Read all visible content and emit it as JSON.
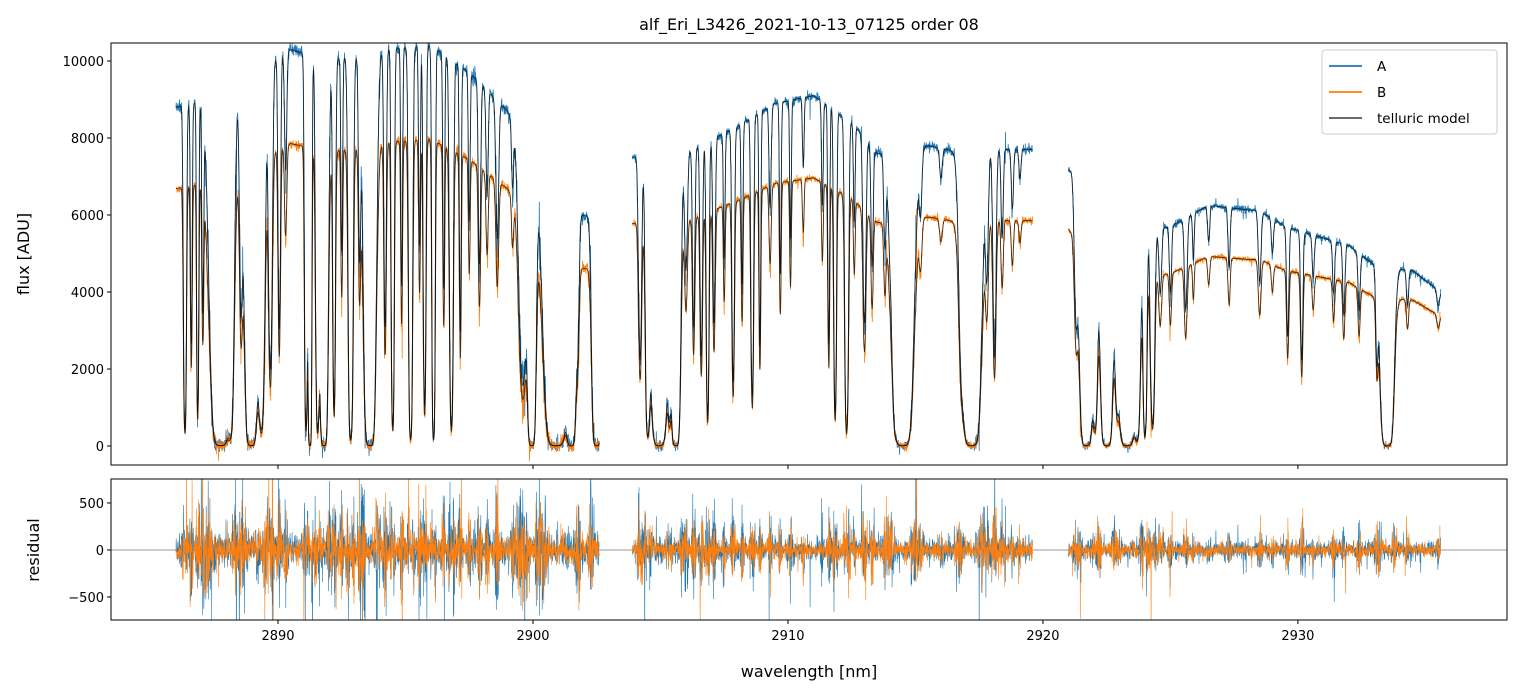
{
  "chart_data": {
    "type": "line",
    "title": "alf_Eri_L3426_2021-10-13_07125  order 08",
    "xlabel": "wavelength [nm]",
    "ylabel_top": "flux [ADU]",
    "ylabel_bottom": "residual",
    "xlim": [
      2883.45,
      2938.2
    ],
    "ylim_top": [
      -494,
      10468
    ],
    "ylim_bottom": [
      -745,
      755
    ],
    "xticks": [
      2890,
      2900,
      2910,
      2920,
      2930
    ],
    "xtick_labels": [
      "2890",
      "2900",
      "2910",
      "2920",
      "2930"
    ],
    "yticks_top": [
      0,
      2000,
      4000,
      6000,
      8000,
      10000
    ],
    "ytick_labels_top": [
      "0",
      "2000",
      "4000",
      "6000",
      "8000",
      "10000"
    ],
    "yticks_bottom": [
      -500,
      0,
      500
    ],
    "ytick_labels_bottom": [
      "−500",
      "0",
      "500"
    ],
    "legend": {
      "placement": "top-right",
      "entries": [
        {
          "label": "A",
          "color": "#1f77b4"
        },
        {
          "label": "B",
          "color": "#ff7f0e"
        },
        {
          "label": "telluric model",
          "color": "#555555"
        }
      ]
    },
    "segments": [
      {
        "range": [
          2886.0,
          2902.6
        ],
        "continuum_A": [
          [
            2886,
            8800
          ],
          [
            2887.3,
            9000
          ],
          [
            2888.5,
            9500
          ],
          [
            2890.5,
            10300
          ],
          [
            2892,
            10000
          ],
          [
            2894,
            10300
          ],
          [
            2896,
            10400
          ],
          [
            2897.5,
            9700
          ],
          [
            2899,
            8700
          ],
          [
            2900.3,
            7000
          ],
          [
            2901.2,
            6000
          ],
          [
            2902.6,
            6000
          ]
        ],
        "B_to_A_ratio": [
          [
            2886,
            0.76
          ],
          [
            2902.6,
            0.77
          ]
        ],
        "residual_amplitude": 220,
        "lines": [
          [
            2886.35,
            0.95,
            0.04
          ],
          [
            2886.6,
            0.7,
            0.03
          ],
          [
            2886.85,
            0.9,
            0.03
          ],
          [
            2887.05,
            0.6,
            0.03
          ],
          [
            2887.75,
            1,
            0.22
          ],
          [
            2888.15,
            0.9,
            0.08
          ],
          [
            2888.55,
            0.6,
            0.05
          ],
          [
            2888.95,
            1,
            0.14
          ],
          [
            2889.35,
            0.95,
            0.09
          ],
          [
            2889.7,
            0.8,
            0.06
          ],
          [
            2890.05,
            0.7,
            0.04
          ],
          [
            2890.3,
            0.3,
            0.04
          ],
          [
            2891.1,
            0.95,
            0.04
          ],
          [
            2891.25,
            1,
            0.04
          ],
          [
            2891.55,
            0.95,
            0.05
          ],
          [
            2891.8,
            1,
            0.09
          ],
          [
            2892.2,
            0.9,
            0.04
          ],
          [
            2892.5,
            0.5,
            0.03
          ],
          [
            2892.85,
            0.98,
            0.06
          ],
          [
            2893.2,
            0.5,
            0.04
          ],
          [
            2893.6,
            1,
            0.13
          ],
          [
            2894.2,
            0.7,
            0.04
          ],
          [
            2894.5,
            0.95,
            0.04
          ],
          [
            2894.85,
            0.6,
            0.03
          ],
          [
            2895.2,
            0.98,
            0.05
          ],
          [
            2895.55,
            0.5,
            0.03
          ],
          [
            2895.75,
            0.9,
            0.04
          ],
          [
            2896.1,
            0.98,
            0.04
          ],
          [
            2896.5,
            0.6,
            0.03
          ],
          [
            2896.8,
            0.95,
            0.05
          ],
          [
            2897.15,
            0.7,
            0.03
          ],
          [
            2897.5,
            0.4,
            0.03
          ],
          [
            2897.9,
            0.5,
            0.04
          ],
          [
            2898.2,
            0.3,
            0.04
          ],
          [
            2898.6,
            0.4,
            0.05
          ],
          [
            2899.2,
            0.2,
            0.04
          ],
          [
            2899.6,
            0.8,
            0.12
          ],
          [
            2899.95,
            1,
            0.09
          ],
          [
            2900.9,
            1,
            0.25
          ],
          [
            2901.5,
            1,
            0.1
          ],
          [
            2901.75,
            0.5,
            0.05
          ],
          [
            2902.5,
            1,
            0.1
          ]
        ]
      },
      {
        "range": [
          2903.9,
          2919.6
        ],
        "continuum_A": [
          [
            2903.9,
            7500
          ],
          [
            2906,
            7600
          ],
          [
            2908,
            8300
          ],
          [
            2909.5,
            8900
          ],
          [
            2911,
            9100
          ],
          [
            2912.5,
            8400
          ],
          [
            2913.5,
            7600
          ],
          [
            2915.5,
            7800
          ],
          [
            2917,
            7600
          ],
          [
            2918.5,
            7700
          ],
          [
            2919.6,
            7700
          ]
        ],
        "B_to_A_ratio": [
          [
            2903.9,
            0.77
          ],
          [
            2919.6,
            0.76
          ]
        ],
        "residual_amplitude": 150,
        "lines": [
          [
            2904.2,
            0.7,
            0.05
          ],
          [
            2904.5,
            0.95,
            0.06
          ],
          [
            2904.95,
            1,
            0.18
          ],
          [
            2905.35,
            0.8,
            0.05
          ],
          [
            2905.6,
            1,
            0.1
          ],
          [
            2906.0,
            0.4,
            0.05
          ],
          [
            2906.3,
            0.6,
            0.04
          ],
          [
            2906.6,
            0.7,
            0.04
          ],
          [
            2906.85,
            0.9,
            0.04
          ],
          [
            2907.1,
            0.6,
            0.04
          ],
          [
            2907.5,
            0.4,
            0.03
          ],
          [
            2907.85,
            0.8,
            0.04
          ],
          [
            2908.2,
            0.5,
            0.03
          ],
          [
            2908.6,
            0.85,
            0.04
          ],
          [
            2908.9,
            0.7,
            0.03
          ],
          [
            2909.3,
            0.3,
            0.04
          ],
          [
            2909.7,
            0.5,
            0.03
          ],
          [
            2910.1,
            0.4,
            0.03
          ],
          [
            2910.6,
            0.2,
            0.03
          ],
          [
            2911.35,
            0.3,
            0.03
          ],
          [
            2911.6,
            0.7,
            0.03
          ],
          [
            2911.85,
            0.9,
            0.04
          ],
          [
            2912.3,
            0.95,
            0.05
          ],
          [
            2912.6,
            0.3,
            0.03
          ],
          [
            2913.0,
            0.6,
            0.05
          ],
          [
            2913.3,
            0.4,
            0.04
          ],
          [
            2913.8,
            0.3,
            0.04
          ],
          [
            2914.2,
            0.3,
            0.05
          ],
          [
            2914.5,
            1,
            0.22
          ],
          [
            2915.2,
            0.2,
            0.05
          ],
          [
            2916.0,
            0.1,
            0.05
          ],
          [
            2916.8,
            0.5,
            0.08
          ],
          [
            2917.2,
            1,
            0.2
          ],
          [
            2917.8,
            0.4,
            0.05
          ],
          [
            2918.1,
            0.7,
            0.05
          ],
          [
            2918.4,
            0.3,
            0.04
          ],
          [
            2918.8,
            0.2,
            0.04
          ],
          [
            2919.1,
            0.1,
            0.04
          ]
        ]
      },
      {
        "range": [
          2921.0,
          2935.6
        ],
        "continuum_A": [
          [
            2921,
            7200
          ],
          [
            2923,
            5500
          ],
          [
            2925,
            5700
          ],
          [
            2926.5,
            6250
          ],
          [
            2928.5,
            6100
          ],
          [
            2929.5,
            5700
          ],
          [
            2930.5,
            5500
          ],
          [
            2932,
            5200
          ],
          [
            2933,
            4700
          ],
          [
            2934.5,
            4550
          ],
          [
            2935.6,
            4000
          ]
        ],
        "B_to_A_ratio": [
          [
            2921,
            0.78
          ],
          [
            2928,
            0.79
          ],
          [
            2935.6,
            0.84
          ]
        ],
        "residual_amplitude": 110,
        "lines": [
          [
            2921.3,
            0.5,
            0.06
          ],
          [
            2921.7,
            1,
            0.14
          ],
          [
            2922.05,
            0.9,
            0.07
          ],
          [
            2922.5,
            1,
            0.13
          ],
          [
            2922.9,
            0.7,
            0.06
          ],
          [
            2923.3,
            1,
            0.18
          ],
          [
            2923.7,
            0.95,
            0.08
          ],
          [
            2924.0,
            0.95,
            0.05
          ],
          [
            2924.3,
            0.9,
            0.06
          ],
          [
            2924.6,
            0.3,
            0.05
          ],
          [
            2925.0,
            0.3,
            0.04
          ],
          [
            2925.6,
            0.4,
            0.05
          ],
          [
            2925.9,
            0.2,
            0.03
          ],
          [
            2926.5,
            0.15,
            0.04
          ],
          [
            2927.3,
            0.25,
            0.04
          ],
          [
            2928.5,
            0.3,
            0.05
          ],
          [
            2929.0,
            0.15,
            0.04
          ],
          [
            2929.6,
            0.5,
            0.04
          ],
          [
            2930.15,
            0.6,
            0.04
          ],
          [
            2930.6,
            0.2,
            0.04
          ],
          [
            2931.4,
            0.25,
            0.04
          ],
          [
            2931.8,
            0.35,
            0.04
          ],
          [
            2932.4,
            0.3,
            0.04
          ],
          [
            2933.1,
            0.5,
            0.04
          ],
          [
            2933.5,
            1,
            0.14
          ],
          [
            2934.3,
            0.2,
            0.04
          ],
          [
            2935.5,
            0.1,
            0.05
          ]
        ]
      }
    ]
  }
}
